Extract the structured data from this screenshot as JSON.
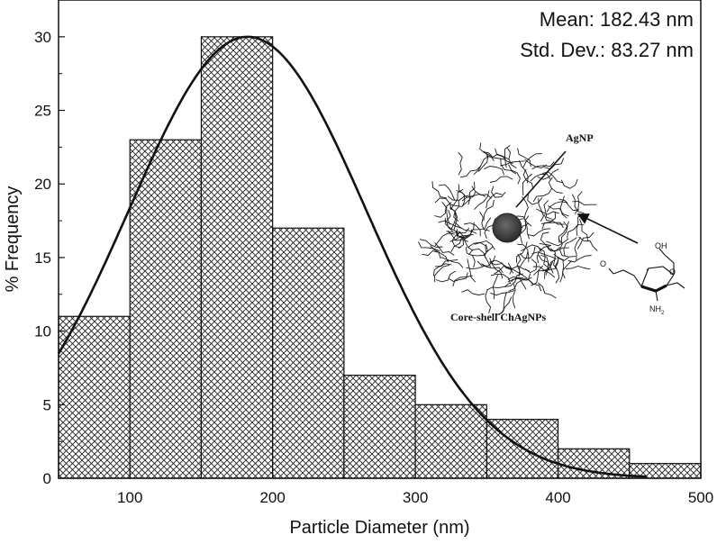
{
  "chart_data": {
    "type": "bar",
    "bin_edges": [
      50,
      100,
      150,
      200,
      250,
      300,
      350,
      400,
      450,
      500
    ],
    "values": [
      11,
      23,
      30,
      17,
      7,
      5,
      4,
      2,
      1
    ],
    "xlabel": "Particle Diameter (nm)",
    "ylabel": "% Frequency",
    "xlim": [
      50,
      500
    ],
    "ylim": [
      0,
      32.5
    ],
    "xticks": [
      100,
      200,
      300,
      400,
      500
    ],
    "yticks": [
      0,
      5,
      10,
      15,
      20,
      25,
      30
    ],
    "bar_fill": "crosshatch",
    "fit": {
      "type": "normal",
      "mean": 182.43,
      "std": 83.27,
      "peak": 30,
      "x_range": [
        50,
        463
      ]
    },
    "annotations": {
      "mean": "Mean: 182.43 nm",
      "std": "Std. Dev.: 83.27 nm"
    },
    "inset": {
      "agnp_label": "AgNP",
      "shell_label": "Core-shell ChAgNPs",
      "oh_label": "OH",
      "nh2_label": "NH",
      "nh2_sub": "2"
    }
  }
}
